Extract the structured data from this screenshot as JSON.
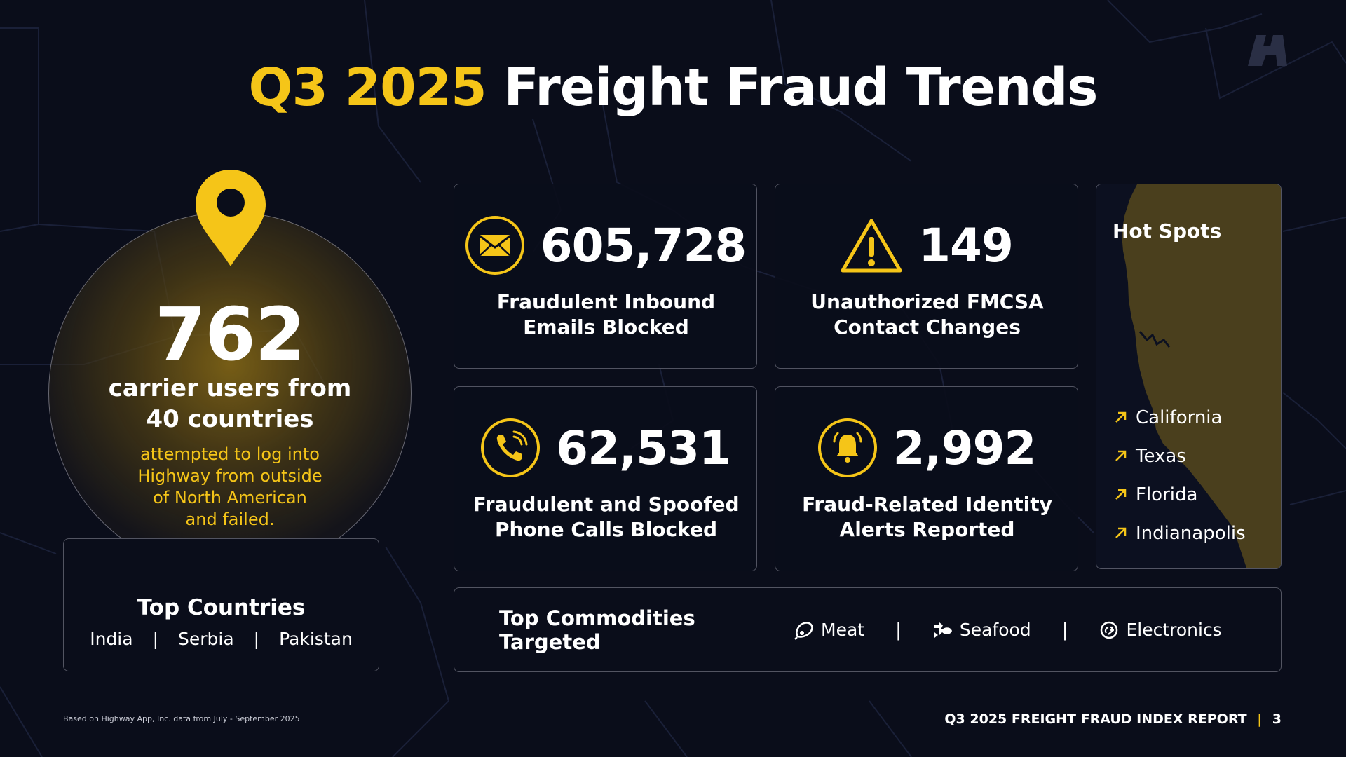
{
  "colors": {
    "accent": "#f5c518",
    "background": "#0a0d1a",
    "text": "#ffffff"
  },
  "title": {
    "highlight": "Q3 2025",
    "rest": "Freight Fraud Trends"
  },
  "login_attempts": {
    "count": "762",
    "line1": "carrier users from",
    "line2": "40 countries",
    "sub1": "attempted to log into",
    "sub2": "Highway from outside",
    "sub3": "of North American",
    "sub4": "and failed.",
    "icon": "location-pin-icon"
  },
  "top_countries": {
    "title": "Top Countries",
    "items": [
      "India",
      "Serbia",
      "Pakistan"
    ],
    "separator": "|"
  },
  "stats": [
    {
      "value": "605,728",
      "label1": "Fraudulent Inbound",
      "label2": "Emails Blocked",
      "icon": "envelope-icon"
    },
    {
      "value": "149",
      "label1": "Unauthorized FMCSA",
      "label2": "Contact Changes",
      "icon": "warning-icon"
    },
    {
      "value": "62,531",
      "label1": "Fraudulent and Spoofed",
      "label2": "Phone Calls Blocked",
      "icon": "phone-icon"
    },
    {
      "value": "2,992",
      "label1": "Fraud-Related Identity",
      "label2": "Alerts Reported",
      "icon": "bell-icon"
    }
  ],
  "hot_spots": {
    "title": "Hot Spots",
    "items": [
      "California",
      "Texas",
      "Florida",
      "Indianapolis"
    ],
    "icon": "trend-arrow-icon"
  },
  "commodities": {
    "title": "Top Commodities Targeted",
    "separator": "|",
    "items": [
      {
        "label": "Meat",
        "icon": "meat-icon"
      },
      {
        "label": "Seafood",
        "icon": "fish-icon"
      },
      {
        "label": "Electronics",
        "icon": "electronics-icon"
      }
    ]
  },
  "footer": {
    "note": "Based on Highway App, Inc. data from July - September 2025",
    "report": "Q3 2025 FREIGHT FRAUD INDEX REPORT",
    "bar": "|",
    "page": "3"
  }
}
